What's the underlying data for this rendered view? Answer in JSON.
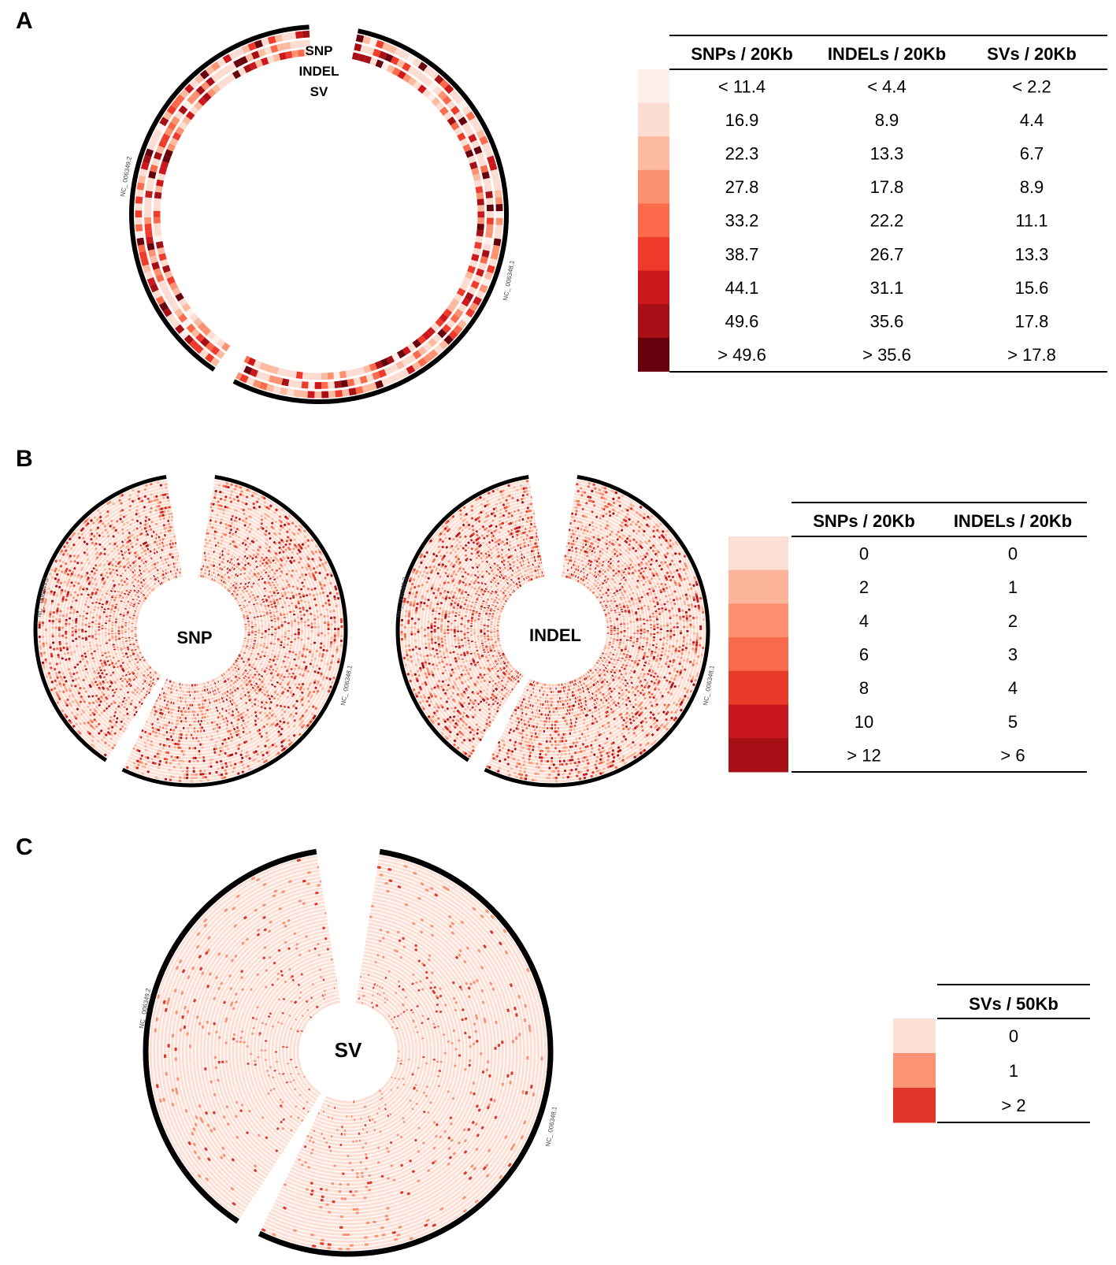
{
  "panels": {
    "A": {
      "letter": "A",
      "ring_labels": [
        "SNP",
        "INDEL",
        "SV"
      ],
      "chromosome_labels": [
        "NC_ 006349.2",
        "NC_ 006348.1"
      ],
      "legend": {
        "headers": [
          "SNPs / 20Kb",
          "INDELs / 20Kb",
          "SVs / 20Kb"
        ],
        "colors": [
          "#fff0ec",
          "#fddcd1",
          "#fcbba1",
          "#fc9272",
          "#fb6a4a",
          "#ef3b2c",
          "#cb181d",
          "#a50f15",
          "#67000d"
        ],
        "rows": [
          [
            "< 11.4",
            "< 4.4",
            "< 2.2"
          ],
          [
            "16.9",
            "8.9",
            "4.4"
          ],
          [
            "22.3",
            "13.3",
            "6.7"
          ],
          [
            "27.8",
            "17.8",
            "8.9"
          ],
          [
            "33.2",
            "22.2",
            "11.1"
          ],
          [
            "38.7",
            "26.7",
            "13.3"
          ],
          [
            "44.1",
            "31.1",
            "15.6"
          ],
          [
            "49.6",
            "35.6",
            "17.8"
          ],
          [
            "> 49.6",
            "> 35.6",
            "> 17.8"
          ]
        ]
      }
    },
    "B": {
      "letter": "B",
      "center_labels": [
        "SNP",
        "INDEL"
      ],
      "chromosome_labels": [
        "NC_ 006349.2",
        "NC_ 006348.1"
      ],
      "legend": {
        "headers": [
          "SNPs / 20Kb",
          "INDELs / 20Kb"
        ],
        "colors": [
          "#fde0d5",
          "#fcb49a",
          "#fc9070",
          "#f96a4a",
          "#ea3a2a",
          "#c8171c",
          "#a50f15"
        ],
        "rows": [
          [
            "0",
            "0"
          ],
          [
            "2",
            "1"
          ],
          [
            "4",
            "2"
          ],
          [
            "6",
            "3"
          ],
          [
            "8",
            "4"
          ],
          [
            "10",
            "5"
          ],
          [
            "> 12",
            "> 6"
          ]
        ]
      }
    },
    "C": {
      "letter": "C",
      "center_label": "SV",
      "chromosome_labels": [
        "NC_ 006349.2",
        "NC_ 006348.1"
      ],
      "legend": {
        "headers": [
          "SVs / 50Kb"
        ],
        "colors": [
          "#fde0d5",
          "#fb9474",
          "#e0372a"
        ],
        "rows": [
          [
            "0"
          ],
          [
            "1"
          ],
          [
            "> 2"
          ]
        ]
      }
    }
  }
}
